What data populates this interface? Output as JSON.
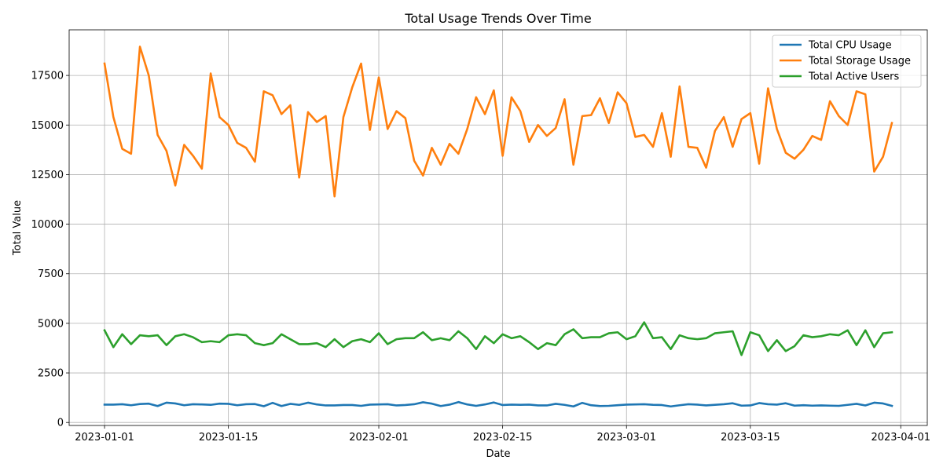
{
  "chart_data": {
    "type": "line",
    "title": "Total Usage Trends Over Time",
    "xlabel": "Date",
    "ylabel": "Total Value",
    "start_date": "2023-01-01",
    "x_ticks": [
      "2023-01-01",
      "2023-01-15",
      "2023-02-01",
      "2023-02-15",
      "2023-03-01",
      "2023-03-15",
      "2023-04-01"
    ],
    "y_ticks": [
      0,
      2500,
      5000,
      7500,
      10000,
      12500,
      15000,
      17500
    ],
    "ylim": [
      -150,
      19800
    ],
    "xlim": [
      "2022-12-28",
      "2023-04-04"
    ],
    "grid": true,
    "legend": "top-right",
    "series": [
      {
        "name": "Total CPU Usage",
        "color": "#1f77b4",
        "values": [
          900,
          900,
          920,
          870,
          930,
          950,
          830,
          1000,
          960,
          870,
          920,
          910,
          890,
          950,
          940,
          870,
          920,
          930,
          820,
          990,
          830,
          940,
          890,
          1000,
          910,
          860,
          860,
          880,
          880,
          840,
          900,
          910,
          920,
          860,
          880,
          920,
          1020,
          950,
          830,
          900,
          1030,
          910,
          840,
          910,
          1010,
          880,
          900,
          890,
          900,
          860,
          860,
          940,
          890,
          810,
          990,
          870,
          830,
          840,
          870,
          900,
          910,
          920,
          890,
          880,
          810,
          870,
          920,
          900,
          860,
          890,
          920,
          970,
          850,
          860,
          980,
          920,
          900,
          970,
          850,
          870,
          850,
          860,
          850,
          840,
          890,
          940,
          860,
          1000,
          960,
          840
        ]
      },
      {
        "name": "Total Storage Usage",
        "color": "#ff7f0e",
        "values": [
          18100,
          15400,
          13800,
          13550,
          18950,
          17500,
          14500,
          13700,
          11950,
          14000,
          13450,
          12800,
          17600,
          15400,
          15000,
          14100,
          13850,
          13150,
          16700,
          16500,
          15550,
          16000,
          12350,
          15650,
          15150,
          15450,
          11400,
          15400,
          16900,
          18100,
          14750,
          17400,
          14800,
          15700,
          15350,
          13200,
          12450,
          13850,
          13000,
          14050,
          13550,
          14800,
          16400,
          15550,
          16750,
          13450,
          16400,
          15700,
          14150,
          15000,
          14450,
          14850,
          16300,
          13000,
          15450,
          15500,
          16350,
          15100,
          16650,
          16100,
          14400,
          14500,
          13900,
          15600,
          13400,
          16950,
          13900,
          13850,
          12850,
          14700,
          15400,
          13900,
          15300,
          15600,
          13050,
          16850,
          14800,
          13600,
          13300,
          13750,
          14450,
          14250,
          16200,
          15450,
          15000,
          16700,
          16550,
          12650,
          13400,
          15100
        ]
      },
      {
        "name": "Total Active Users",
        "color": "#2ca02c",
        "values": [
          4650,
          3800,
          4450,
          3950,
          4400,
          4350,
          4400,
          3900,
          4350,
          4450,
          4300,
          4050,
          4100,
          4050,
          4400,
          4450,
          4400,
          4000,
          3900,
          4000,
          4450,
          4200,
          3950,
          3950,
          4000,
          3800,
          4200,
          3800,
          4100,
          4200,
          4050,
          4500,
          3950,
          4200,
          4250,
          4250,
          4550,
          4150,
          4250,
          4150,
          4600,
          4250,
          3700,
          4350,
          4000,
          4450,
          4250,
          4350,
          4050,
          3700,
          4000,
          3900,
          4450,
          4700,
          4250,
          4300,
          4300,
          4500,
          4550,
          4200,
          4350,
          5050,
          4250,
          4300,
          3700,
          4400,
          4250,
          4200,
          4250,
          4500,
          4550,
          4600,
          3400,
          4550,
          4400,
          3600,
          4150,
          3600,
          3850,
          4400,
          4300,
          4350,
          4450,
          4400,
          4650,
          3900,
          4650,
          3800,
          4500,
          4550
        ]
      }
    ]
  }
}
